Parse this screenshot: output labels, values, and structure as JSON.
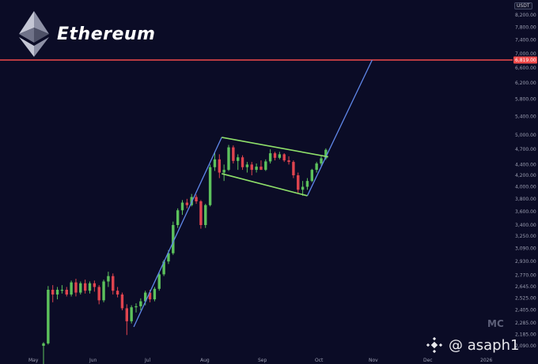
{
  "header": {
    "title": "Ethereum",
    "currency": "USDT",
    "watermark_text": "@ asaph1",
    "logo_text": "MC"
  },
  "colors": {
    "background": "#0b0c26",
    "up": "#5cc15c",
    "down": "#e0444f",
    "channel": "#8fe06a",
    "trendline": "#5f86e8",
    "resistance": "#f24a4a"
  },
  "chart_data": {
    "type": "candlestick",
    "y_ticks": [
      "8,200.00",
      "7,800.00",
      "7,400.00",
      "7,000.00",
      "6,600.00",
      "6,200.00",
      "5,800.00",
      "5,400.00",
      "5,000.00",
      "4,700.00",
      "4,400.00",
      "4,200.00",
      "4,000.00",
      "3,800.00",
      "3,600.00",
      "3,400.00",
      "3,250.00",
      "3,090.00",
      "2,930.00",
      "2,770.00",
      "2,645.00",
      "2,525.00",
      "2,405.00",
      "2,285.00",
      "2,185.00",
      "2,090.00"
    ],
    "x_ticks": [
      "May",
      "Jun",
      "Jul",
      "Aug",
      "Sep",
      "Oct",
      "Nov",
      "Dec",
      "2026"
    ],
    "resistance_label": "6,819.00",
    "resistance": 6819,
    "candles": [
      {
        "o": 2090,
        "h": 2120,
        "l": 1920,
        "c": 2110
      },
      {
        "o": 2110,
        "h": 2650,
        "l": 2100,
        "c": 2610
      },
      {
        "o": 2610,
        "h": 2660,
        "l": 2480,
        "c": 2560
      },
      {
        "o": 2560,
        "h": 2640,
        "l": 2510,
        "c": 2610
      },
      {
        "o": 2610,
        "h": 2660,
        "l": 2570,
        "c": 2610
      },
      {
        "o": 2610,
        "h": 2640,
        "l": 2540,
        "c": 2560
      },
      {
        "o": 2560,
        "h": 2710,
        "l": 2540,
        "c": 2690
      },
      {
        "o": 2690,
        "h": 2730,
        "l": 2540,
        "c": 2580
      },
      {
        "o": 2580,
        "h": 2700,
        "l": 2560,
        "c": 2680
      },
      {
        "o": 2680,
        "h": 2720,
        "l": 2570,
        "c": 2600
      },
      {
        "o": 2600,
        "h": 2700,
        "l": 2570,
        "c": 2680
      },
      {
        "o": 2680,
        "h": 2710,
        "l": 2590,
        "c": 2640
      },
      {
        "o": 2640,
        "h": 2660,
        "l": 2460,
        "c": 2500
      },
      {
        "o": 2500,
        "h": 2720,
        "l": 2480,
        "c": 2700
      },
      {
        "o": 2700,
        "h": 2810,
        "l": 2640,
        "c": 2760
      },
      {
        "o": 2760,
        "h": 2790,
        "l": 2560,
        "c": 2600
      },
      {
        "o": 2600,
        "h": 2640,
        "l": 2530,
        "c": 2560
      },
      {
        "o": 2560,
        "h": 2580,
        "l": 2400,
        "c": 2420
      },
      {
        "o": 2420,
        "h": 2460,
        "l": 2180,
        "c": 2300
      },
      {
        "o": 2300,
        "h": 2450,
        "l": 2280,
        "c": 2430
      },
      {
        "o": 2430,
        "h": 2470,
        "l": 2380,
        "c": 2440
      },
      {
        "o": 2440,
        "h": 2520,
        "l": 2400,
        "c": 2490
      },
      {
        "o": 2490,
        "h": 2600,
        "l": 2450,
        "c": 2580
      },
      {
        "o": 2580,
        "h": 2610,
        "l": 2480,
        "c": 2510
      },
      {
        "o": 2510,
        "h": 2640,
        "l": 2490,
        "c": 2620
      },
      {
        "o": 2620,
        "h": 2800,
        "l": 2600,
        "c": 2780
      },
      {
        "o": 2780,
        "h": 2950,
        "l": 2760,
        "c": 2930
      },
      {
        "o": 2930,
        "h": 3070,
        "l": 2900,
        "c": 3030
      },
      {
        "o": 3030,
        "h": 3450,
        "l": 3010,
        "c": 3400
      },
      {
        "o": 3400,
        "h": 3650,
        "l": 3360,
        "c": 3620
      },
      {
        "o": 3620,
        "h": 3780,
        "l": 3550,
        "c": 3740
      },
      {
        "o": 3740,
        "h": 3800,
        "l": 3650,
        "c": 3700
      },
      {
        "o": 3700,
        "h": 3880,
        "l": 3680,
        "c": 3830
      },
      {
        "o": 3830,
        "h": 3870,
        "l": 3720,
        "c": 3760
      },
      {
        "o": 3760,
        "h": 3780,
        "l": 3350,
        "c": 3400
      },
      {
        "o": 3400,
        "h": 3720,
        "l": 3360,
        "c": 3700
      },
      {
        "o": 3700,
        "h": 4400,
        "l": 3680,
        "c": 4350
      },
      {
        "o": 4350,
        "h": 4650,
        "l": 4280,
        "c": 4500
      },
      {
        "o": 4500,
        "h": 4600,
        "l": 4150,
        "c": 4250
      },
      {
        "o": 4250,
        "h": 4400,
        "l": 4100,
        "c": 4300
      },
      {
        "o": 4300,
        "h": 4790,
        "l": 4280,
        "c": 4740
      },
      {
        "o": 4740,
        "h": 4780,
        "l": 4420,
        "c": 4470
      },
      {
        "o": 4470,
        "h": 4600,
        "l": 4300,
        "c": 4540
      },
      {
        "o": 4540,
        "h": 4580,
        "l": 4300,
        "c": 4350
      },
      {
        "o": 4350,
        "h": 4450,
        "l": 4250,
        "c": 4400
      },
      {
        "o": 4400,
        "h": 4450,
        "l": 4200,
        "c": 4300
      },
      {
        "o": 4300,
        "h": 4420,
        "l": 4250,
        "c": 4360
      },
      {
        "o": 4360,
        "h": 4480,
        "l": 4300,
        "c": 4300
      },
      {
        "o": 4300,
        "h": 4500,
        "l": 4280,
        "c": 4460
      },
      {
        "o": 4460,
        "h": 4700,
        "l": 4420,
        "c": 4620
      },
      {
        "o": 4620,
        "h": 4650,
        "l": 4480,
        "c": 4530
      },
      {
        "o": 4530,
        "h": 4650,
        "l": 4500,
        "c": 4600
      },
      {
        "o": 4600,
        "h": 4620,
        "l": 4450,
        "c": 4480
      },
      {
        "o": 4480,
        "h": 4560,
        "l": 4400,
        "c": 4450
      },
      {
        "o": 4450,
        "h": 4480,
        "l": 4150,
        "c": 4200
      },
      {
        "o": 4200,
        "h": 4250,
        "l": 3900,
        "c": 3950
      },
      {
        "o": 3950,
        "h": 4100,
        "l": 3850,
        "c": 4000
      },
      {
        "o": 4000,
        "h": 4150,
        "l": 3950,
        "c": 4100
      },
      {
        "o": 4100,
        "h": 4320,
        "l": 4080,
        "c": 4300
      },
      {
        "o": 4300,
        "h": 4450,
        "l": 4250,
        "c": 4420
      },
      {
        "o": 4420,
        "h": 4560,
        "l": 4380,
        "c": 4520
      },
      {
        "o": 4520,
        "h": 4720,
        "l": 4490,
        "c": 4690
      }
    ]
  }
}
